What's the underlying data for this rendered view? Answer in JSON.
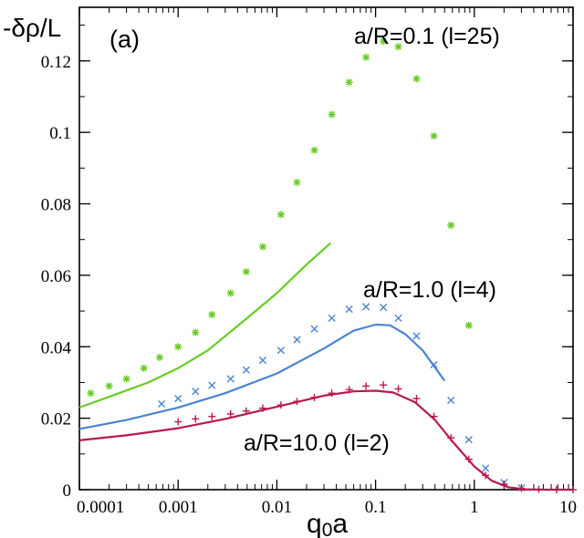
{
  "chart_data": {
    "type": "line",
    "panel_label": "(a)",
    "ylabel": "-δρ/L",
    "xlabel_main": "q",
    "xlabel_sub": "0",
    "xlabel_tail": "a",
    "xscale": "log",
    "xlim": [
      0.0001,
      10
    ],
    "ylim": [
      0,
      0.135
    ],
    "x_ticks": [
      0.0001,
      0.001,
      0.01,
      0.1,
      1,
      10
    ],
    "x_tick_labels": [
      "0.0001",
      "0.001",
      "0.01",
      "0.1",
      "1",
      "10"
    ],
    "y_ticks": [
      0,
      0.02,
      0.04,
      0.06,
      0.08,
      0.1,
      0.12
    ],
    "y_tick_labels": [
      "0",
      "0.02",
      "0.04",
      "0.06",
      "0.08",
      "0.1",
      "0.12"
    ],
    "grid": false,
    "annotations": [
      "a/R=0.1 (l=25)",
      "a/R=1.0 (l=4)",
      "a/R=10.0 (l=2)"
    ],
    "series": [
      {
        "name": "a/R=0.1 (l=25) points",
        "kind": "points",
        "marker": "asterisk",
        "color": "#66cc22",
        "x": [
          0.00013,
          0.0002,
          0.0003,
          0.00045,
          0.00065,
          0.001,
          0.0015,
          0.0022,
          0.0034,
          0.0049,
          0.0072,
          0.011,
          0.016,
          0.024,
          0.036,
          0.054,
          0.08,
          0.12,
          0.17,
          0.26,
          0.39,
          0.58,
          0.88
        ],
        "y": [
          0.027,
          0.029,
          0.031,
          0.034,
          0.037,
          0.04,
          0.044,
          0.049,
          0.055,
          0.061,
          0.068,
          0.077,
          0.086,
          0.095,
          0.105,
          0.114,
          0.121,
          0.1255,
          0.124,
          0.115,
          0.099,
          0.074,
          0.046
        ]
      },
      {
        "name": "a/R=0.1 (l=25) curve",
        "kind": "line",
        "color": "#66cc22",
        "x": [
          0.0001,
          0.0002,
          0.0005,
          0.001,
          0.002,
          0.005,
          0.01,
          0.02,
          0.035
        ],
        "y": [
          0.023,
          0.026,
          0.03,
          0.034,
          0.039,
          0.048,
          0.055,
          0.063,
          0.069
        ]
      },
      {
        "name": "a/R=1.0 (l=4) points",
        "kind": "points",
        "marker": "x",
        "color": "#4a84d0",
        "x": [
          0.00068,
          0.001,
          0.0015,
          0.0022,
          0.0034,
          0.0049,
          0.0072,
          0.011,
          0.016,
          0.024,
          0.036,
          0.054,
          0.08,
          0.12,
          0.17,
          0.26,
          0.39,
          0.58,
          0.88,
          1.3,
          2.0,
          3.0
        ],
        "y": [
          0.024,
          0.0255,
          0.0275,
          0.0292,
          0.031,
          0.0335,
          0.0362,
          0.039,
          0.042,
          0.045,
          0.048,
          0.0505,
          0.0512,
          0.051,
          0.048,
          0.043,
          0.035,
          0.025,
          0.014,
          0.006,
          0.002,
          0.0005
        ]
      },
      {
        "name": "a/R=1.0 (l=4) curve",
        "kind": "line",
        "color": "#4a84d0",
        "x": [
          0.0001,
          0.0003,
          0.001,
          0.003,
          0.01,
          0.03,
          0.06,
          0.1,
          0.14,
          0.2,
          0.3,
          0.5
        ],
        "y": [
          0.017,
          0.0195,
          0.023,
          0.027,
          0.0325,
          0.0395,
          0.0445,
          0.0462,
          0.046,
          0.0435,
          0.039,
          0.0305
        ]
      },
      {
        "name": "a/R=10.0 (l=2) points",
        "kind": "points",
        "marker": "plus",
        "color": "#b8194a",
        "x": [
          0.001,
          0.0015,
          0.0022,
          0.0034,
          0.0049,
          0.0072,
          0.011,
          0.016,
          0.024,
          0.036,
          0.054,
          0.08,
          0.12,
          0.17,
          0.26,
          0.39,
          0.58,
          0.88,
          1.3,
          2.0,
          3.0,
          4.5,
          6.8,
          10
        ],
        "y": [
          0.019,
          0.0198,
          0.0205,
          0.0212,
          0.022,
          0.0228,
          0.0237,
          0.0247,
          0.0258,
          0.027,
          0.028,
          0.029,
          0.0293,
          0.0282,
          0.0255,
          0.0205,
          0.0145,
          0.0085,
          0.004,
          0.0015,
          0.0004,
          0.0001,
          0.0,
          0.0
        ]
      },
      {
        "name": "a/R=10.0 (l=2) curve",
        "kind": "line",
        "color": "#b8194a",
        "x": [
          0.0001,
          0.0003,
          0.001,
          0.003,
          0.01,
          0.03,
          0.06,
          0.1,
          0.15,
          0.25,
          0.4,
          0.6,
          1.0,
          1.5,
          2.2,
          3.2,
          5,
          10
        ],
        "y": [
          0.0138,
          0.0152,
          0.0172,
          0.0198,
          0.0232,
          0.0263,
          0.0275,
          0.0277,
          0.0272,
          0.0245,
          0.0195,
          0.0135,
          0.0065,
          0.0025,
          0.0007,
          0.0001,
          0.0,
          0.0
        ]
      }
    ]
  }
}
